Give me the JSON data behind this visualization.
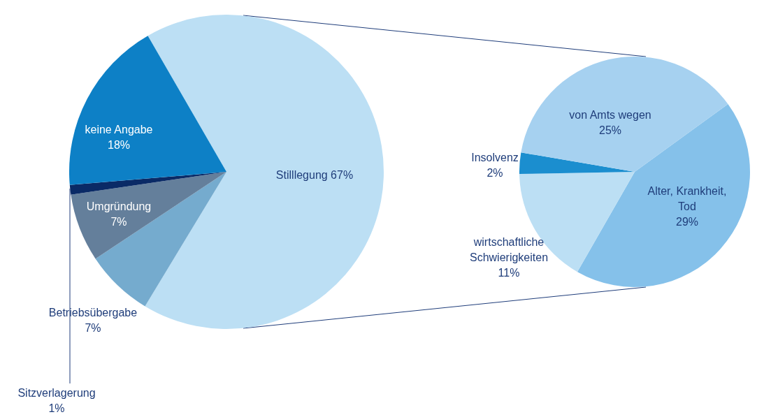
{
  "chart_data": [
    {
      "type": "pie",
      "categories": [
        "Stilllegung",
        "Betriebsübergabe",
        "Umgründung",
        "Sitzverlagerung",
        "keine Angabe"
      ],
      "values": [
        67,
        7,
        7,
        1,
        18
      ],
      "colors": [
        "#bcdff4",
        "#75abce",
        "#647f9b",
        "#0a2a66",
        "#0d80c6"
      ],
      "value_labels": [
        "67%",
        "7%",
        "7%",
        "1%",
        "18%"
      ]
    },
    {
      "type": "pie",
      "categories": [
        "Alter, Krankheit, Tod",
        "wirtschaftliche Schwierigkeiten",
        "Insolvenz",
        "von Amts wegen"
      ],
      "values": [
        29,
        11,
        2,
        25
      ],
      "colors": [
        "#85c1ea",
        "#bcdff4",
        "#1b8ecf",
        "#a6d1f0"
      ],
      "value_labels": [
        "29%",
        "11%",
        "2%",
        "25%"
      ]
    }
  ]
}
